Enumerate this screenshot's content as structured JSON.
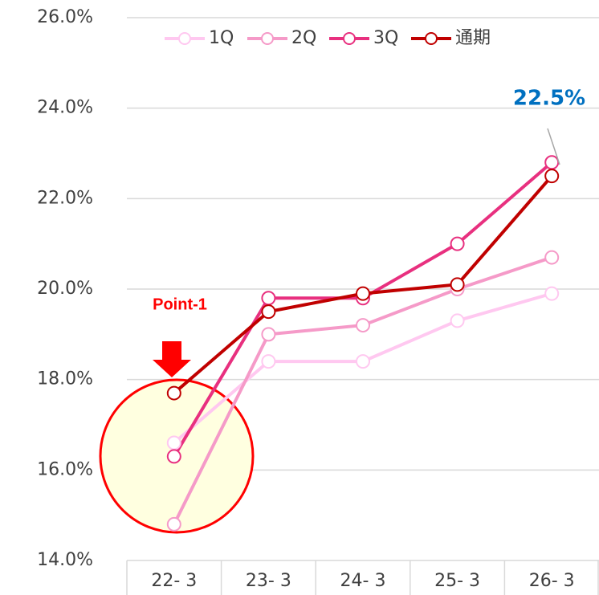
{
  "chart_data": {
    "type": "line",
    "categories": [
      "22- 3",
      "23- 3",
      "24- 3",
      "25- 3",
      "26- 3"
    ],
    "series": [
      {
        "name": "1Q",
        "color": "#ffc8f0",
        "values": [
          16.6,
          18.4,
          18.4,
          19.3,
          19.9
        ]
      },
      {
        "name": "2Q",
        "color": "#f59ac8",
        "values": [
          14.8,
          19.0,
          19.2,
          20.0,
          20.7
        ]
      },
      {
        "name": "3Q",
        "color": "#e8307f",
        "values": [
          16.3,
          19.8,
          19.8,
          21.0,
          22.8
        ]
      },
      {
        "name": "通期",
        "color": "#c00000",
        "values": [
          17.7,
          19.5,
          19.9,
          20.1,
          22.5
        ]
      }
    ],
    "ylim": [
      14,
      26
    ],
    "yticks": [
      {
        "value": 14,
        "label": "14.0%"
      },
      {
        "value": 16,
        "label": "16.0%"
      },
      {
        "value": 18,
        "label": "18.0%"
      },
      {
        "value": 20,
        "label": "20.0%"
      },
      {
        "value": 22,
        "label": "22.0%"
      },
      {
        "value": 24,
        "label": "24.0%"
      },
      {
        "value": 26,
        "label": "26.0%"
      }
    ],
    "grid": true,
    "legend": "top",
    "annotations": [
      {
        "text": "22.5%"
      },
      {
        "text": "Point-1"
      }
    ]
  }
}
